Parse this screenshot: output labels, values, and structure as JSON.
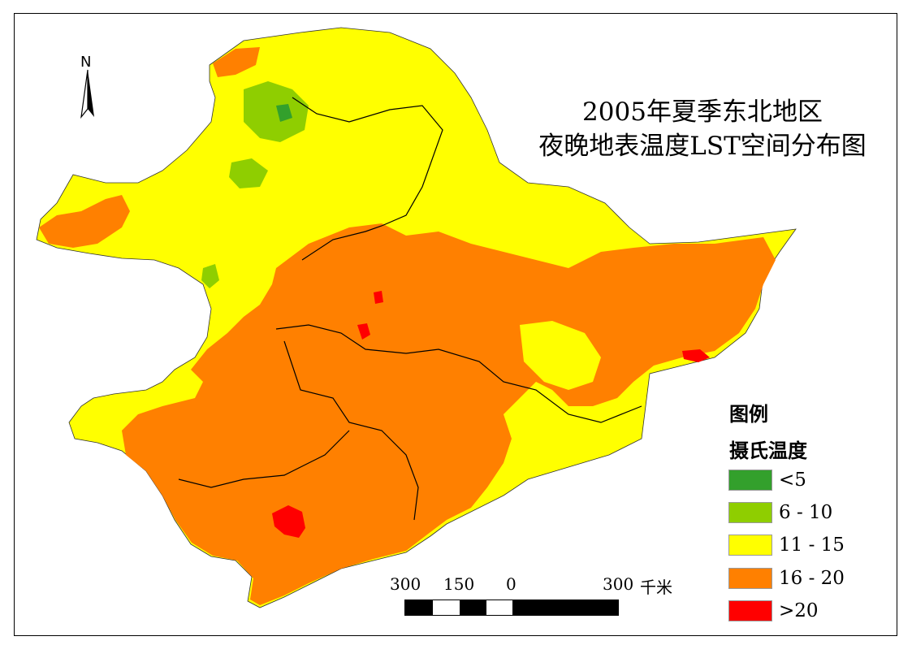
{
  "title": {
    "line1": "2005年夏季东北地区",
    "line2": "夜晚地表温度LST空间分布图"
  },
  "north_arrow": {
    "label": "N"
  },
  "legend": {
    "heading": "图例",
    "subheading": "摄氏温度",
    "items": [
      {
        "label": "<5",
        "color": "#33a02c"
      },
      {
        "label": "6 - 10",
        "color": "#8fce00"
      },
      {
        "label": "11 - 15",
        "color": "#ffff00"
      },
      {
        "label": "16 - 20",
        "color": "#ff8000"
      },
      {
        "label": ">20",
        "color": "#ff0000"
      }
    ]
  },
  "scale_bar": {
    "labels": [
      "300",
      "150",
      "0",
      "300"
    ],
    "unit": "千米"
  },
  "map_colors": {
    "background": "#ffffff",
    "boundary": "#000000"
  }
}
